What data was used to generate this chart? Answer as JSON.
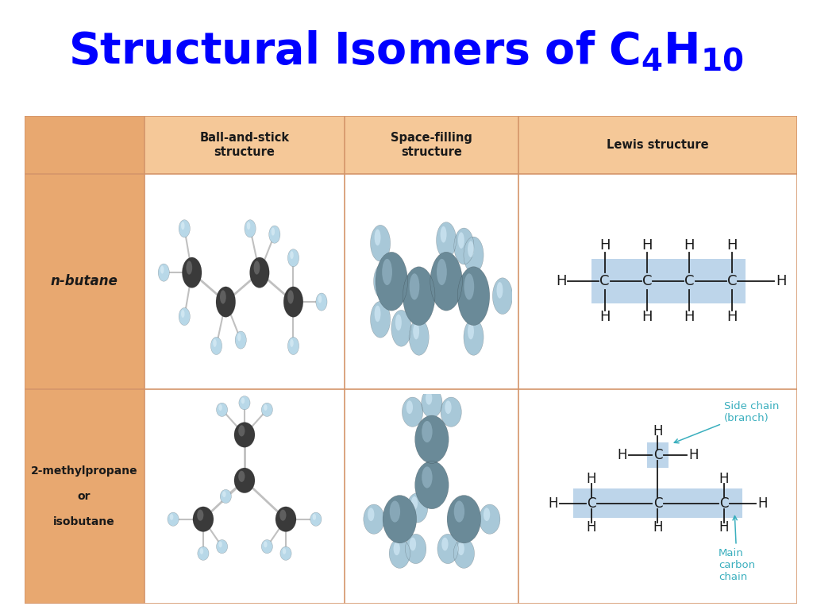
{
  "title_color": "#0000FF",
  "title_fontsize": 40,
  "bg_color": "#FFFFFF",
  "label_col_bg": "#E8A870",
  "header_bg": "#F5C898",
  "data_cell_bg": "#FAD9B0",
  "lewis_highlight": "#BDD5EA",
  "border_color": "#D4956A",
  "col_headers": [
    "Ball-and-stick\nstructure",
    "Space-filling\nstructure",
    "Lewis structure"
  ],
  "row1_label": "n-butane",
  "row2_label": "2-methylpropane\nor\nisobutane",
  "cyan_color": "#3AAFBE",
  "text_color": "#1A1A1A",
  "c_ball_color": "#3A3A3A",
  "c_ball_highlight": "#787878",
  "h_ball_color": "#B8D8E8",
  "h_ball_highlight": "#E0F0F8",
  "c_space_color": "#6A8A98",
  "h_space_color": "#A8C8D8"
}
